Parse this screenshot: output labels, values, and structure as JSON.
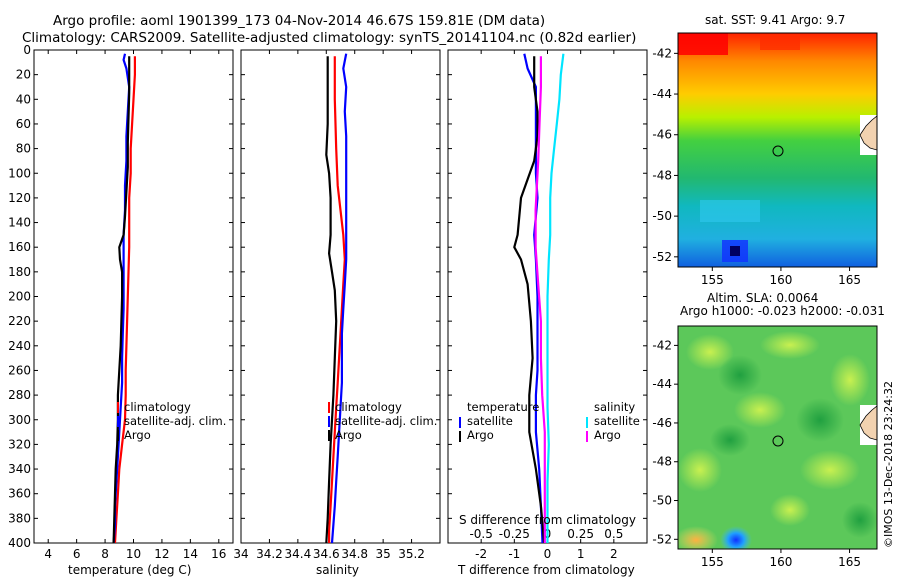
{
  "header": {
    "title_line1": "Argo profile: aoml 1901399_173 04-Nov-2014 46.67S 159.81E (DM data)",
    "title_line2": "Climatology: CARS2009. Satellite-adjusted climatology: synTS_20141104.nc (0.82d earlier)"
  },
  "colors": {
    "climatology": "#ff0000",
    "satellite": "#0000ff",
    "argo": "#000000",
    "salinity_satellite": "#00e5ff",
    "salinity_argo": "#ff00ff"
  },
  "chart_data": [
    {
      "type": "line",
      "name": "temperature",
      "xlabel": "temperature (deg C)",
      "xlim": [
        3,
        17
      ],
      "xticks": [
        4,
        6,
        8,
        10,
        12,
        14,
        16
      ],
      "ylim": [
        0,
        400
      ],
      "yticks": [
        0,
        20,
        40,
        60,
        80,
        100,
        120,
        140,
        160,
        180,
        200,
        220,
        240,
        260,
        280,
        300,
        320,
        340,
        360,
        380,
        400
      ],
      "y_inverted": true,
      "legend": [
        "climatology",
        "satellite-adj. clim.",
        "Argo"
      ],
      "series": [
        {
          "name": "climatology",
          "color": "#ff0000",
          "points": [
            [
              10.1,
              5
            ],
            [
              10.1,
              20
            ],
            [
              10.0,
              40
            ],
            [
              9.9,
              60
            ],
            [
              9.8,
              80
            ],
            [
              9.8,
              100
            ],
            [
              9.7,
              120
            ],
            [
              9.7,
              140
            ],
            [
              9.7,
              160
            ],
            [
              9.65,
              180
            ],
            [
              9.6,
              200
            ],
            [
              9.55,
              220
            ],
            [
              9.5,
              240
            ],
            [
              9.45,
              260
            ],
            [
              9.45,
              280
            ],
            [
              9.4,
              300
            ],
            [
              9.2,
              320
            ],
            [
              9.0,
              340
            ],
            [
              8.9,
              360
            ],
            [
              8.8,
              380
            ],
            [
              8.7,
              400
            ]
          ]
        },
        {
          "name": "satellite-adj. clim.",
          "color": "#0000ff",
          "points": [
            [
              9.4,
              3
            ],
            [
              9.3,
              8
            ],
            [
              9.5,
              15
            ],
            [
              9.7,
              30
            ],
            [
              9.6,
              50
            ],
            [
              9.5,
              70
            ],
            [
              9.5,
              90
            ],
            [
              9.4,
              110
            ],
            [
              9.4,
              130
            ],
            [
              9.3,
              150
            ],
            [
              9.3,
              170
            ],
            [
              9.3,
              190
            ],
            [
              9.3,
              210
            ],
            [
              9.25,
              230
            ],
            [
              9.2,
              250
            ],
            [
              9.2,
              270
            ],
            [
              9.1,
              290
            ],
            [
              9.0,
              310
            ],
            [
              8.9,
              330
            ],
            [
              8.8,
              350
            ],
            [
              8.7,
              370
            ],
            [
              8.7,
              385
            ],
            [
              8.6,
              400
            ]
          ]
        },
        {
          "name": "Argo",
          "color": "#000000",
          "points": [
            [
              9.7,
              5
            ],
            [
              9.7,
              20
            ],
            [
              9.7,
              35
            ],
            [
              9.65,
              55
            ],
            [
              9.6,
              75
            ],
            [
              9.6,
              95
            ],
            [
              9.5,
              115
            ],
            [
              9.4,
              135
            ],
            [
              9.3,
              150
            ],
            [
              9.0,
              160
            ],
            [
              9.05,
              170
            ],
            [
              9.2,
              180
            ],
            [
              9.2,
              200
            ],
            [
              9.15,
              220
            ],
            [
              9.1,
              240
            ],
            [
              9.0,
              260
            ],
            [
              8.9,
              280
            ],
            [
              8.9,
              300
            ],
            [
              8.85,
              320
            ],
            [
              8.75,
              340
            ],
            [
              8.7,
              360
            ],
            [
              8.65,
              380
            ],
            [
              8.6,
              400
            ]
          ]
        }
      ]
    },
    {
      "type": "line",
      "name": "salinity",
      "xlabel": "salinity",
      "xlim": [
        34.0,
        35.4
      ],
      "xticks": [
        34,
        34.2,
        34.4,
        34.6,
        34.8,
        35,
        35.2
      ],
      "ylim": [
        0,
        400
      ],
      "y_inverted": true,
      "legend": [
        "climatology",
        "satellite-adj. clim.",
        "Argo"
      ],
      "series": [
        {
          "name": "climatology",
          "color": "#ff0000",
          "points": [
            [
              34.66,
              5
            ],
            [
              34.66,
              40
            ],
            [
              34.67,
              80
            ],
            [
              34.68,
              110
            ],
            [
              34.7,
              130
            ],
            [
              34.72,
              150
            ],
            [
              34.73,
              170
            ],
            [
              34.72,
              190
            ],
            [
              34.71,
              210
            ],
            [
              34.7,
              230
            ],
            [
              34.69,
              250
            ],
            [
              34.68,
              270
            ],
            [
              34.67,
              290
            ],
            [
              34.66,
              310
            ],
            [
              34.65,
              330
            ],
            [
              34.64,
              350
            ],
            [
              34.63,
              370
            ],
            [
              34.62,
              390
            ],
            [
              34.62,
              400
            ]
          ]
        },
        {
          "name": "satellite-adj. clim.",
          "color": "#0000ff",
          "points": [
            [
              34.74,
              3
            ],
            [
              34.72,
              15
            ],
            [
              34.74,
              30
            ],
            [
              34.73,
              50
            ],
            [
              34.74,
              70
            ],
            [
              34.74,
              100
            ],
            [
              34.74,
              120
            ],
            [
              34.74,
              150
            ],
            [
              34.74,
              170
            ],
            [
              34.73,
              190
            ],
            [
              34.72,
              210
            ],
            [
              34.71,
              230
            ],
            [
              34.71,
              250
            ],
            [
              34.71,
              270
            ],
            [
              34.7,
              290
            ],
            [
              34.69,
              310
            ],
            [
              34.68,
              330
            ],
            [
              34.67,
              350
            ],
            [
              34.66,
              370
            ],
            [
              34.65,
              385
            ],
            [
              34.64,
              400
            ]
          ]
        },
        {
          "name": "Argo",
          "color": "#000000",
          "points": [
            [
              34.61,
              5
            ],
            [
              34.61,
              30
            ],
            [
              34.61,
              60
            ],
            [
              34.6,
              85
            ],
            [
              34.62,
              100
            ],
            [
              34.63,
              120
            ],
            [
              34.63,
              150
            ],
            [
              34.62,
              165
            ],
            [
              34.64,
              180
            ],
            [
              34.66,
              195
            ],
            [
              34.67,
              220
            ],
            [
              34.66,
              250
            ],
            [
              34.65,
              280
            ],
            [
              34.64,
              300
            ],
            [
              34.63,
              320
            ],
            [
              34.62,
              350
            ],
            [
              34.61,
              380
            ],
            [
              34.6,
              400
            ]
          ]
        }
      ]
    },
    {
      "type": "line",
      "name": "difference",
      "xlabel": "T difference from climatology",
      "xlabel_top": "S difference from climatology",
      "xlim": [
        -3,
        3
      ],
      "xticks": [
        -2,
        -1,
        0,
        1,
        2
      ],
      "xticks_top_labels": [
        "-0.5",
        "-0.25",
        "0",
        "0.25",
        "0.5"
      ],
      "xticks_top_values": [
        -0.5,
        -0.25,
        0,
        0.25,
        0.5
      ],
      "ylim": [
        0,
        400
      ],
      "y_inverted": true,
      "legend_temperature": {
        "title": "temperature",
        "items": [
          "satellite",
          "Argo"
        ]
      },
      "legend_salinity": {
        "title": "salinity",
        "items": [
          "satellite",
          "Argo"
        ]
      },
      "series": [
        {
          "name": "T satellite",
          "color": "#0000ff",
          "points": [
            [
              -0.7,
              3
            ],
            [
              -0.6,
              15
            ],
            [
              -0.35,
              30
            ],
            [
              -0.35,
              50
            ],
            [
              -0.35,
              70
            ],
            [
              -0.35,
              100
            ],
            [
              -0.3,
              120
            ],
            [
              -0.4,
              150
            ],
            [
              -0.35,
              170
            ],
            [
              -0.3,
              200
            ],
            [
              -0.3,
              230
            ],
            [
              -0.3,
              260
            ],
            [
              -0.35,
              280
            ],
            [
              -0.35,
              310
            ],
            [
              -0.25,
              340
            ],
            [
              -0.2,
              370
            ],
            [
              -0.15,
              400
            ]
          ]
        },
        {
          "name": "T Argo",
          "color": "#000000",
          "points": [
            [
              -0.4,
              5
            ],
            [
              -0.4,
              30
            ],
            [
              -0.3,
              50
            ],
            [
              -0.3,
              70
            ],
            [
              -0.4,
              90
            ],
            [
              -0.8,
              120
            ],
            [
              -0.9,
              150
            ],
            [
              -1.0,
              160
            ],
            [
              -0.8,
              170
            ],
            [
              -0.6,
              190
            ],
            [
              -0.5,
              220
            ],
            [
              -0.45,
              250
            ],
            [
              -0.55,
              280
            ],
            [
              -0.55,
              310
            ],
            [
              -0.35,
              340
            ],
            [
              -0.2,
              370
            ],
            [
              -0.1,
              400
            ]
          ]
        },
        {
          "name": "S satellite",
          "color": "#00e5ff",
          "points": [
            [
              0.12,
              3
            ],
            [
              0.1,
              20
            ],
            [
              0.09,
              40
            ],
            [
              0.07,
              60
            ],
            [
              0.05,
              80
            ],
            [
              0.03,
              100
            ],
            [
              0.02,
              120
            ],
            [
              0.02,
              150
            ],
            [
              0.01,
              170
            ],
            [
              0.0,
              200
            ],
            [
              0.0,
              230
            ],
            [
              0.0,
              260
            ],
            [
              0.0,
              290
            ],
            [
              0.01,
              320
            ],
            [
              0.0,
              350
            ],
            [
              0.0,
              380
            ],
            [
              0.0,
              400
            ]
          ]
        },
        {
          "name": "S Argo",
          "color": "#ff00ff",
          "points": [
            [
              -0.05,
              5
            ],
            [
              -0.05,
              30
            ],
            [
              -0.06,
              60
            ],
            [
              -0.07,
              90
            ],
            [
              -0.09,
              130
            ],
            [
              -0.09,
              160
            ],
            [
              -0.07,
              190
            ],
            [
              -0.05,
              220
            ],
            [
              -0.05,
              250
            ],
            [
              -0.04,
              280
            ],
            [
              -0.02,
              310
            ],
            [
              -0.02,
              340
            ],
            [
              -0.02,
              370
            ],
            [
              -0.02,
              400
            ]
          ]
        }
      ]
    },
    {
      "type": "heatmap",
      "name": "sst_map",
      "title": "sat. SST: 9.41 Argo: 9.7",
      "xlim": [
        152.5,
        167
      ],
      "ylim": [
        -52.5,
        -41
      ],
      "xticks": [
        155,
        160,
        165
      ],
      "yticks": [
        -42,
        -44,
        -46,
        -48,
        -50,
        -52
      ],
      "marker": [
        159.81,
        -46.67
      ]
    },
    {
      "type": "heatmap",
      "name": "sla_map",
      "title": "Altim. SLA: 0.0064",
      "subtitle": "Argo h1000: -0.023 h2000: -0.031",
      "xlim": [
        152.5,
        167
      ],
      "ylim": [
        -52.5,
        -41
      ],
      "xticks": [
        155,
        160,
        165
      ],
      "yticks": [
        -42,
        -44,
        -46,
        -48,
        -50,
        -52
      ],
      "marker": [
        159.81,
        -46.67
      ]
    }
  ],
  "footer": {
    "credit": "©IMOS 13-Dec-2018 23:24:32"
  }
}
